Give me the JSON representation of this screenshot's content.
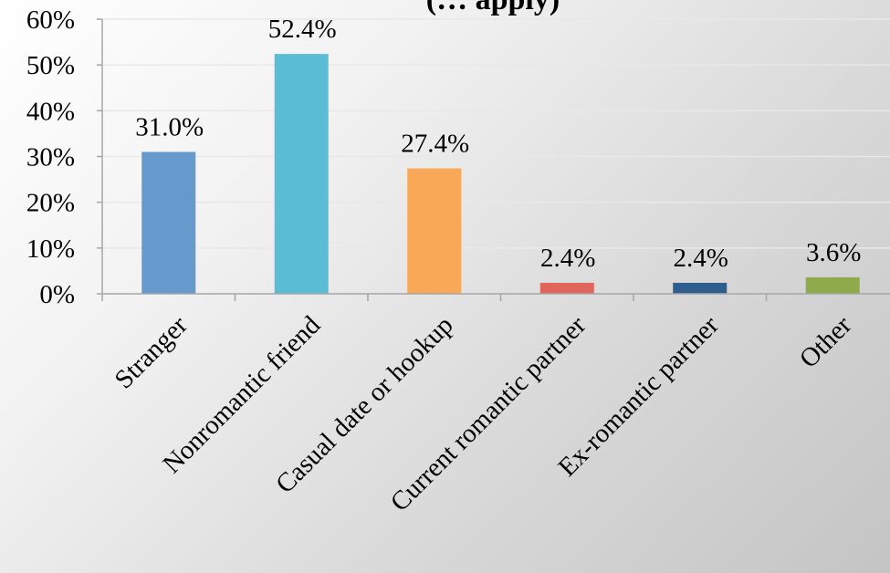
{
  "chart_data": {
    "type": "bar",
    "title": "(… apply)",
    "xlabel": "",
    "ylabel": "",
    "categories": [
      "Stranger",
      "Nonromantic friend",
      "Casual date or hookup",
      "Current romantic partner",
      "Ex-romantic partner",
      "Other"
    ],
    "values": [
      31.0,
      52.4,
      27.4,
      2.4,
      2.4,
      3.6
    ],
    "data_labels": [
      "31.0%",
      "52.4%",
      "27.4%",
      "2.4%",
      "2.4%",
      "3.6%"
    ],
    "colors": [
      "#6699cc",
      "#5bbcd6",
      "#f9a857",
      "#e0665c",
      "#2e5e8e",
      "#8faa4a"
    ],
    "ylim": [
      0,
      60
    ],
    "yticks": [
      0,
      10,
      20,
      30,
      40,
      50,
      60
    ],
    "ytick_labels": [
      "0%",
      "10%",
      "20%",
      "30%",
      "40%",
      "50%",
      "60%"
    ],
    "grid": true,
    "legend": "none"
  }
}
